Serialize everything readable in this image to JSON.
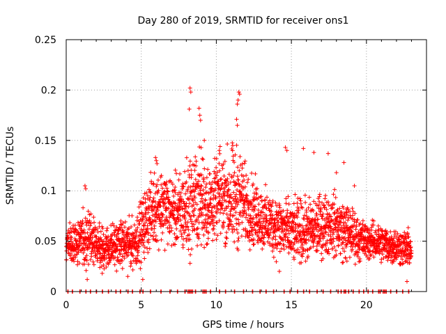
{
  "chart_data": {
    "type": "scatter",
    "title": "Day 280 of 2019, SRMTID for receiver ons1",
    "xlabel": "GPS time / hours",
    "ylabel": "SRMTID / TECUs",
    "xlim": [
      0,
      24
    ],
    "ylim": [
      0,
      0.25
    ],
    "xticks": [
      0,
      5,
      10,
      15,
      20
    ],
    "xtick_labels": [
      "0",
      "5",
      "10",
      "15",
      "20"
    ],
    "yticks": [
      0,
      0.05,
      0.1,
      0.15,
      0.2,
      0.25
    ],
    "ytick_labels": [
      "0",
      "0.05",
      "0.1",
      "0.15",
      "0.2",
      "0.25"
    ],
    "grid": true,
    "marker": "+",
    "color": "#ff0000",
    "series": [
      {
        "name": "SRMTID",
        "profile": {
          "hours": [
            0,
            0.5,
            1,
            1.5,
            2,
            2.5,
            3,
            3.5,
            4,
            4.5,
            5,
            5.5,
            6,
            6.5,
            7,
            7.5,
            8,
            8.5,
            9,
            9.5,
            10,
            10.5,
            11,
            11.5,
            12,
            12.5,
            13,
            13.5,
            14,
            14.5,
            15,
            15.5,
            16,
            16.5,
            17,
            17.5,
            18,
            18.5,
            19,
            19.5,
            20,
            20.5,
            21,
            21.5,
            22,
            22.5,
            23
          ],
          "median": [
            0.045,
            0.047,
            0.05,
            0.055,
            0.045,
            0.043,
            0.045,
            0.047,
            0.048,
            0.048,
            0.06,
            0.075,
            0.085,
            0.085,
            0.08,
            0.078,
            0.082,
            0.09,
            0.092,
            0.085,
            0.09,
            0.095,
            0.09,
            0.095,
            0.085,
            0.078,
            0.072,
            0.068,
            0.065,
            0.062,
            0.058,
            0.06,
            0.06,
            0.062,
            0.065,
            0.068,
            0.065,
            0.06,
            0.058,
            0.052,
            0.05,
            0.05,
            0.048,
            0.046,
            0.045,
            0.043,
            0.042
          ],
          "spread": [
            0.015,
            0.016,
            0.02,
            0.025,
            0.018,
            0.018,
            0.018,
            0.018,
            0.018,
            0.02,
            0.025,
            0.028,
            0.03,
            0.03,
            0.028,
            0.03,
            0.04,
            0.04,
            0.04,
            0.035,
            0.03,
            0.035,
            0.045,
            0.04,
            0.03,
            0.028,
            0.025,
            0.025,
            0.025,
            0.025,
            0.025,
            0.025,
            0.025,
            0.025,
            0.025,
            0.025,
            0.025,
            0.025,
            0.022,
            0.018,
            0.015,
            0.015,
            0.015,
            0.015,
            0.015,
            0.015,
            0.014
          ]
        },
        "peaks": [
          [
            8.25,
            0.202
          ],
          [
            8.3,
            0.198
          ],
          [
            8.2,
            0.181
          ],
          [
            8.85,
            0.182
          ],
          [
            8.9,
            0.175
          ],
          [
            8.95,
            0.17
          ],
          [
            9.2,
            0.15
          ],
          [
            11.5,
            0.198
          ],
          [
            11.55,
            0.196
          ],
          [
            11.45,
            0.19
          ],
          [
            11.4,
            0.186
          ],
          [
            11.35,
            0.171
          ],
          [
            11.4,
            0.165
          ],
          [
            1.25,
            0.105
          ],
          [
            1.3,
            0.102
          ],
          [
            5.95,
            0.133
          ],
          [
            6.0,
            0.13
          ],
          [
            6.05,
            0.127
          ],
          [
            10.25,
            0.144
          ],
          [
            10.2,
            0.14
          ],
          [
            14.6,
            0.143
          ],
          [
            14.7,
            0.14
          ],
          [
            15.8,
            0.142
          ],
          [
            16.5,
            0.138
          ],
          [
            17.45,
            0.137
          ],
          [
            18.5,
            0.128
          ],
          [
            18.0,
            0.118
          ],
          [
            19.2,
            0.105
          ],
          [
            1.4,
            0.012
          ],
          [
            2.4,
            0.018
          ],
          [
            4.1,
            0.015
          ],
          [
            5.1,
            0.012
          ],
          [
            22.7,
            0.01
          ],
          [
            14.2,
            0.02
          ]
        ],
        "zero_level_x": [
          0.1,
          0.4,
          0.9,
          1.3,
          1.6,
          2.0,
          2.4,
          2.8,
          3.3,
          3.6,
          4.1,
          4.4,
          4.9,
          5.1,
          5.6,
          6.3,
          6.9,
          7.4,
          7.9,
          8.1,
          8.2,
          8.3,
          8.4,
          8.6,
          9.1,
          9.2,
          9.3,
          9.6,
          10.2,
          10.6,
          11.2,
          11.8,
          12.4,
          12.9,
          13.3,
          13.8,
          14.5,
          14.9,
          15.4,
          15.8,
          16.2,
          16.7,
          17.1,
          17.6,
          18.1,
          18.3,
          18.5,
          18.6,
          18.8,
          19.1,
          19.5,
          19.8,
          20.1,
          20.4,
          20.8,
          20.9,
          21.1,
          21.2,
          21.3,
          21.6,
          22.0,
          22.4,
          22.8
        ],
        "sample_interval_hours": 0.0083
      }
    ]
  }
}
